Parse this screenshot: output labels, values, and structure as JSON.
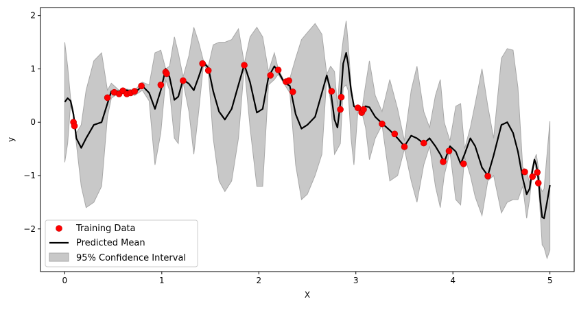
{
  "chart_data": {
    "type": "line",
    "title": "",
    "xlabel": "X",
    "ylabel": "y",
    "xlim": [
      -0.25,
      5.25
    ],
    "ylim": [
      -2.8,
      2.15
    ],
    "xticks": [
      0,
      1,
      2,
      3,
      4,
      5
    ],
    "xtick_labels": [
      "0",
      "1",
      "2",
      "3",
      "4",
      "5"
    ],
    "yticks": [
      -2,
      -1,
      0,
      1,
      2
    ],
    "ytick_labels": [
      "−2",
      "−1",
      "0",
      "1",
      "2"
    ],
    "grid": false,
    "legend_position": "lower-left",
    "legend": [
      {
        "key": "training",
        "label": "Training Data"
      },
      {
        "key": "mean",
        "label": "Predicted Mean"
      },
      {
        "key": "ci",
        "label": "95% Confidence Interval"
      }
    ],
    "colors": {
      "training": "#ff0000",
      "training_edge": "#c00000",
      "mean": "#000000",
      "ci_fill": "#c8c8c8",
      "ci_edge": "#a8a8a8"
    },
    "training_data": {
      "x": [
        0.09,
        0.1,
        0.44,
        0.51,
        0.56,
        0.6,
        0.64,
        0.68,
        0.72,
        0.79,
        0.99,
        1.04,
        1.05,
        1.22,
        1.42,
        1.48,
        1.85,
        2.12,
        2.2,
        2.28,
        2.31,
        2.35,
        2.75,
        2.84,
        2.85,
        3.02,
        3.06,
        3.08,
        3.27,
        3.4,
        3.5,
        3.7,
        3.9,
        3.96,
        4.11,
        4.36,
        4.74,
        4.82,
        4.87,
        4.88
      ],
      "y": [
        0.0,
        -0.07,
        0.46,
        0.56,
        0.53,
        0.59,
        0.53,
        0.55,
        0.58,
        0.68,
        0.7,
        0.94,
        0.91,
        0.78,
        1.1,
        0.97,
        1.07,
        0.88,
        0.98,
        0.76,
        0.78,
        0.57,
        0.58,
        0.24,
        0.47,
        0.27,
        0.18,
        0.24,
        -0.03,
        -0.22,
        -0.46,
        -0.39,
        -0.74,
        -0.54,
        -0.78,
        -1.01,
        -0.93,
        -1.02,
        -0.94,
        -1.14
      ]
    },
    "predicted_mean": {
      "x": [
        0.0,
        0.03,
        0.06,
        0.09,
        0.12,
        0.17,
        0.22,
        0.3,
        0.38,
        0.44,
        0.48,
        0.56,
        0.64,
        0.72,
        0.8,
        0.87,
        0.93,
        0.99,
        1.04,
        1.08,
        1.13,
        1.17,
        1.22,
        1.28,
        1.33,
        1.38,
        1.43,
        1.48,
        1.53,
        1.59,
        1.65,
        1.72,
        1.79,
        1.85,
        1.91,
        1.98,
        2.04,
        2.1,
        2.16,
        2.2,
        2.26,
        2.32,
        2.38,
        2.44,
        2.5,
        2.58,
        2.65,
        2.7,
        2.74,
        2.78,
        2.81,
        2.84,
        2.87,
        2.9,
        2.92,
        2.95,
        2.98,
        3.02,
        3.06,
        3.1,
        3.14,
        3.2,
        3.27,
        3.35,
        3.43,
        3.5,
        3.57,
        3.63,
        3.7,
        3.76,
        3.82,
        3.87,
        3.91,
        3.97,
        4.03,
        4.08,
        4.12,
        4.18,
        4.23,
        4.3,
        4.36,
        4.42,
        4.5,
        4.56,
        4.62,
        4.67,
        4.72,
        4.76,
        4.79,
        4.81,
        4.84,
        4.86,
        4.88,
        4.9,
        4.92,
        4.94,
        4.97,
        5.0
      ],
      "y": [
        0.38,
        0.45,
        0.4,
        0.15,
        -0.3,
        -0.48,
        -0.3,
        -0.05,
        0.0,
        0.35,
        0.58,
        0.58,
        0.6,
        0.55,
        0.68,
        0.55,
        0.25,
        0.6,
        1.0,
        0.85,
        0.42,
        0.48,
        0.8,
        0.72,
        0.6,
        0.85,
        1.12,
        1.02,
        0.58,
        0.2,
        0.05,
        0.25,
        0.7,
        1.08,
        0.75,
        0.18,
        0.25,
        0.85,
        1.05,
        0.95,
        0.75,
        0.68,
        0.15,
        -0.12,
        -0.05,
        0.1,
        0.55,
        0.88,
        0.6,
        0.05,
        -0.1,
        0.35,
        1.1,
        1.3,
        1.1,
        0.6,
        0.3,
        0.25,
        0.22,
        0.3,
        0.28,
        0.1,
        -0.02,
        -0.15,
        -0.3,
        -0.45,
        -0.25,
        -0.3,
        -0.4,
        -0.3,
        -0.45,
        -0.6,
        -0.75,
        -0.45,
        -0.55,
        -0.78,
        -0.6,
        -0.3,
        -0.45,
        -0.85,
        -1.0,
        -0.62,
        -0.05,
        0.0,
        -0.2,
        -0.55,
        -1.05,
        -1.35,
        -1.25,
        -1.0,
        -0.7,
        -0.8,
        -1.05,
        -1.45,
        -1.78,
        -1.8,
        -1.5,
        -1.18
      ]
    },
    "confidence_upper": [
      1.5,
      1.05,
      0.45,
      0.2,
      -0.2,
      -0.05,
      0.6,
      1.15,
      1.3,
      0.6,
      0.73,
      0.6,
      0.62,
      0.6,
      0.75,
      0.7,
      1.3,
      1.35,
      1.0,
      1.05,
      1.6,
      1.3,
      0.85,
      1.25,
      1.78,
      1.5,
      1.15,
      1.05,
      1.45,
      1.5,
      1.5,
      1.55,
      1.75,
      1.1,
      1.6,
      1.78,
      1.6,
      0.95,
      1.3,
      1.0,
      0.78,
      0.82,
      1.2,
      1.55,
      1.68,
      1.85,
      1.65,
      0.9,
      1.05,
      0.95,
      0.3,
      1.1,
      1.55,
      1.9,
      1.5,
      0.7,
      0.3,
      0.3,
      0.2,
      0.7,
      1.15,
      0.5,
      0.2,
      0.8,
      0.25,
      -0.35,
      0.6,
      1.05,
      0.2,
      -0.1,
      0.5,
      0.8,
      0.0,
      -0.35,
      0.3,
      0.35,
      -0.5,
      -0.1,
      0.35,
      1.0,
      0.3,
      -0.3,
      1.2,
      1.38,
      1.35,
      0.65,
      -0.85,
      -0.9,
      -1.15,
      -0.9,
      -0.7,
      -0.6,
      -0.85,
      -1.2,
      -1.3,
      -1.25,
      -0.6,
      0.02
    ],
    "confidence_lower": [
      -0.75,
      -0.4,
      0.35,
      0.1,
      -0.4,
      -1.2,
      -1.6,
      -1.5,
      -1.2,
      0.1,
      0.45,
      0.55,
      0.58,
      0.5,
      0.6,
      0.4,
      -0.8,
      -0.2,
      0.8,
      0.6,
      -0.3,
      -0.4,
      0.75,
      0.2,
      -0.6,
      0.2,
      1.08,
      0.95,
      -0.3,
      -1.1,
      -1.3,
      -1.1,
      -0.3,
      1.05,
      -0.1,
      -1.2,
      -1.2,
      0.7,
      0.8,
      0.9,
      0.72,
      0.55,
      -0.8,
      -1.45,
      -1.35,
      -1.0,
      -0.6,
      0.85,
      0.4,
      -0.6,
      -0.5,
      -0.4,
      0.65,
      0.7,
      0.6,
      -0.3,
      -0.8,
      0.2,
      0.2,
      -0.1,
      -0.7,
      -0.3,
      -0.05,
      -1.1,
      -1.0,
      -0.5,
      -1.1,
      -1.5,
      -0.8,
      -0.45,
      -1.2,
      -1.6,
      -1.0,
      -0.55,
      -1.45,
      -1.55,
      -0.65,
      -1.0,
      -1.4,
      -1.75,
      -1.1,
      -1.0,
      -1.7,
      -1.5,
      -1.45,
      -1.45,
      -1.2,
      -1.8,
      -1.45,
      -1.1,
      -0.75,
      -0.9,
      -1.15,
      -1.7,
      -2.3,
      -2.35,
      -2.55,
      -2.4
    ]
  }
}
